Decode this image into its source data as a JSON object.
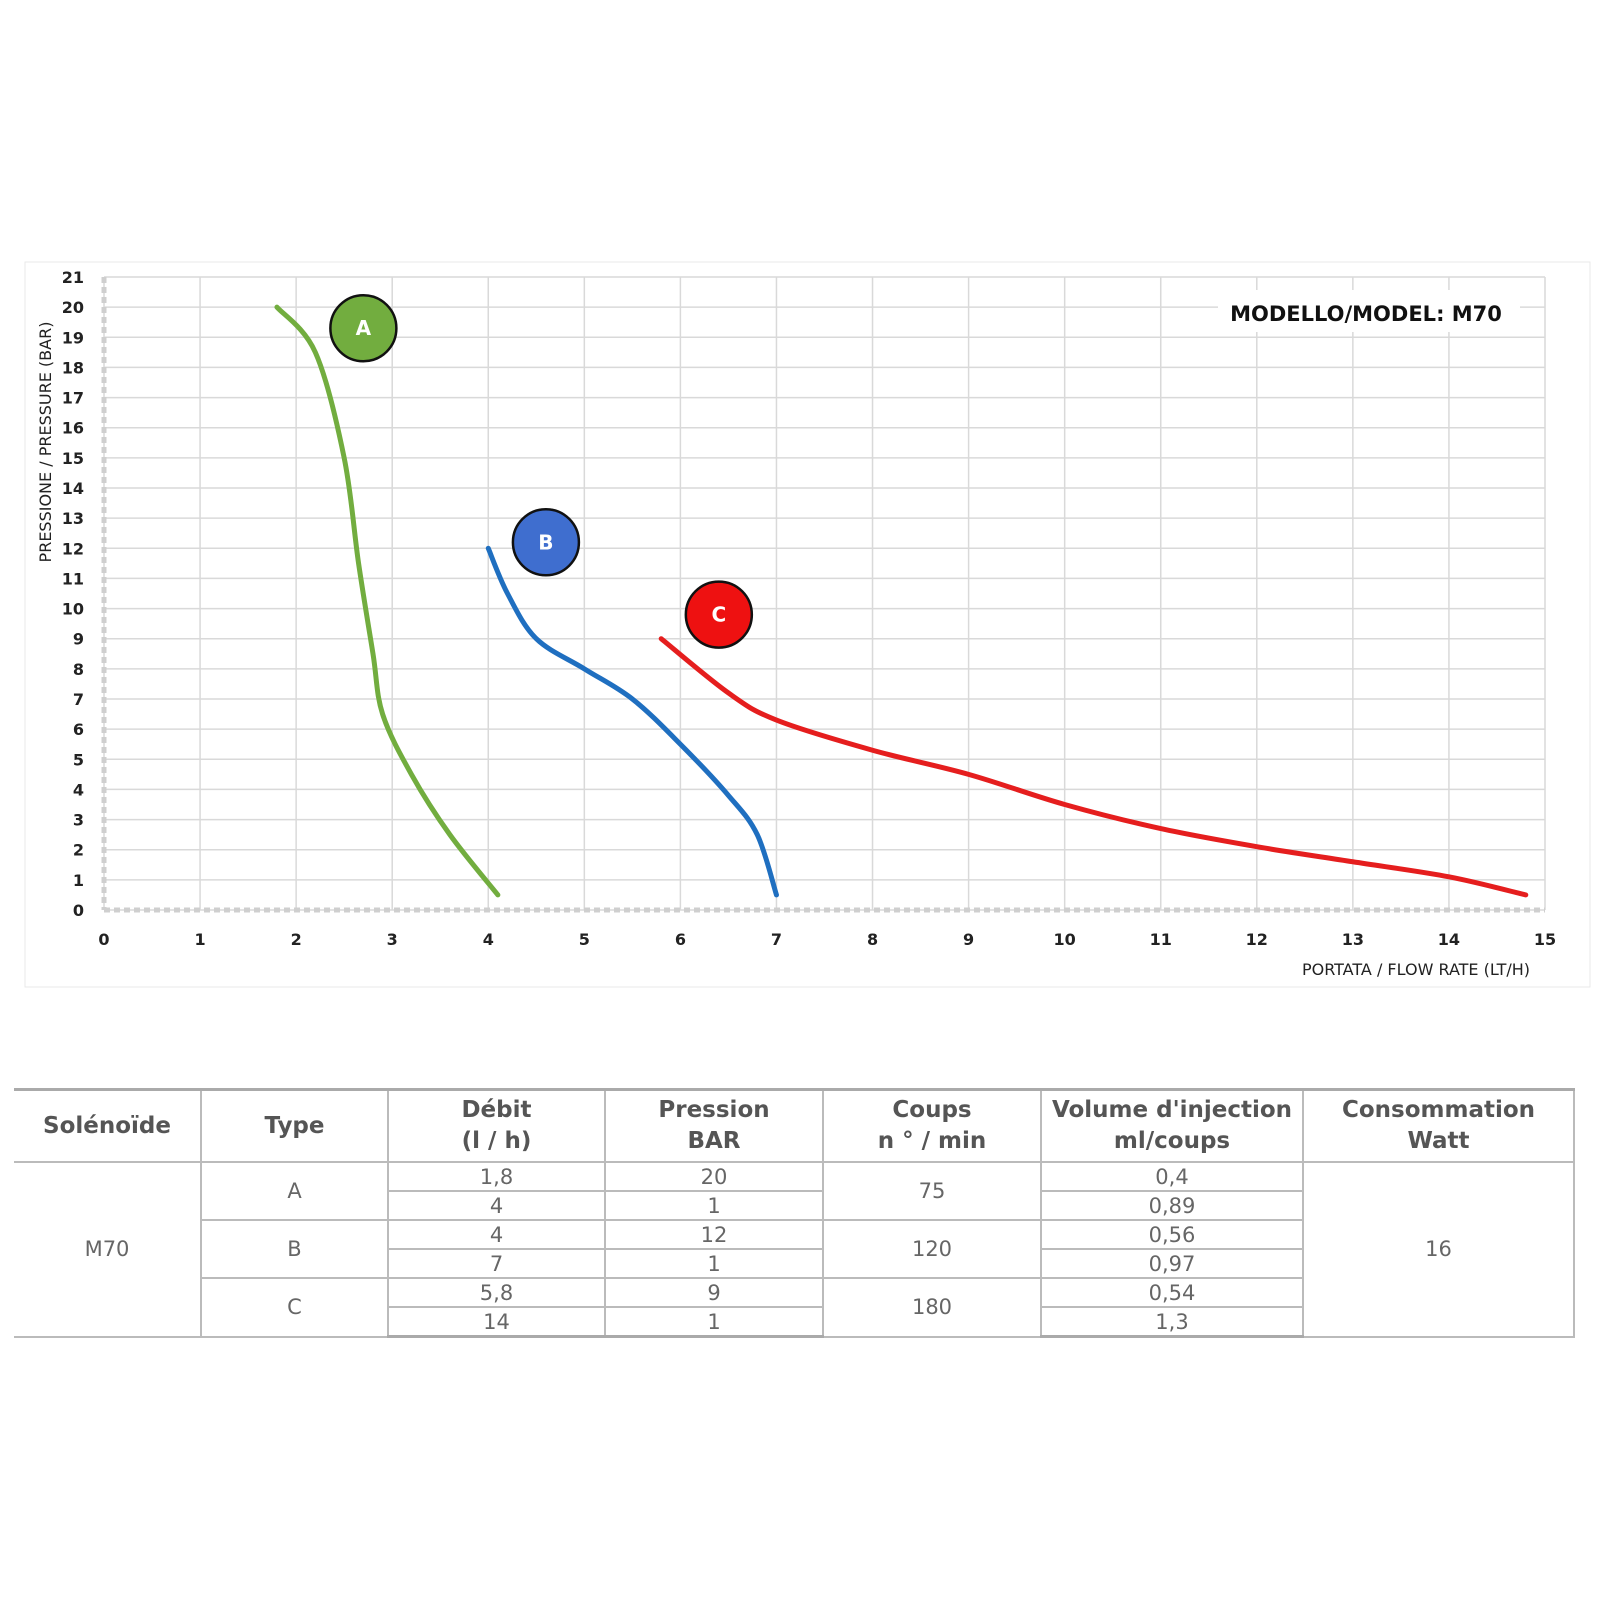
{
  "chart_data": {
    "type": "line",
    "title": "MODELLO/MODEL: M70",
    "xlabel": "PORTATA / FLOW RATE (LT/H)",
    "ylabel": "PRESSIONE / PRESSURE (BAR)",
    "xlim": [
      0,
      15
    ],
    "ylim": [
      0,
      21
    ],
    "x_ticks": [
      0,
      1,
      2,
      3,
      4,
      5,
      6,
      7,
      8,
      9,
      10,
      11,
      12,
      13,
      14,
      15
    ],
    "y_ticks": [
      0,
      1,
      2,
      3,
      4,
      5,
      6,
      7,
      8,
      9,
      10,
      11,
      12,
      13,
      14,
      15,
      16,
      17,
      18,
      19,
      20,
      21
    ],
    "grid": true,
    "series": [
      {
        "name": "A",
        "color": "#72ad3f",
        "points": [
          [
            1.8,
            20
          ],
          [
            2.2,
            18.5
          ],
          [
            2.5,
            15
          ],
          [
            2.65,
            11.5
          ],
          [
            2.8,
            8.5
          ],
          [
            2.9,
            6.5
          ],
          [
            3.2,
            4.5
          ],
          [
            3.6,
            2.5
          ],
          [
            4.1,
            0.5
          ]
        ]
      },
      {
        "name": "B",
        "color": "#1f6fc0",
        "points": [
          [
            4.0,
            12
          ],
          [
            4.2,
            10.5
          ],
          [
            4.5,
            9
          ],
          [
            5.0,
            8
          ],
          [
            5.5,
            7
          ],
          [
            6.0,
            5.5
          ],
          [
            6.5,
            3.8
          ],
          [
            6.8,
            2.5
          ],
          [
            7.0,
            0.5
          ]
        ]
      },
      {
        "name": "C",
        "color": "#e51e1e",
        "points": [
          [
            5.8,
            9
          ],
          [
            6.5,
            7.2
          ],
          [
            7.0,
            6.3
          ],
          [
            8.0,
            5.3
          ],
          [
            9.0,
            4.5
          ],
          [
            10.0,
            3.5
          ],
          [
            11.0,
            2.7
          ],
          [
            12.0,
            2.1
          ],
          [
            13.0,
            1.6
          ],
          [
            14.0,
            1.1
          ],
          [
            14.8,
            0.5
          ]
        ]
      }
    ],
    "badges": [
      {
        "label": "A",
        "color": "#72ad3f",
        "x": 2.7,
        "y": 19.3
      },
      {
        "label": "B",
        "color": "#3f6ecf",
        "x": 4.6,
        "y": 12.2
      },
      {
        "label": "C",
        "color": "#ee1111",
        "x": 6.4,
        "y": 9.8
      }
    ]
  },
  "table": {
    "headers": [
      [
        "Solénoïde"
      ],
      [
        "Type"
      ],
      [
        "Débit",
        "(l / h)"
      ],
      [
        "Pression",
        "BAR"
      ],
      [
        "Coups",
        "n ° / min"
      ],
      [
        "Volume d'injection",
        "ml/coups"
      ],
      [
        "Consommation",
        "Watt"
      ]
    ],
    "model": "M70",
    "rows": [
      {
        "type": "A",
        "debit": [
          "1,8",
          "4"
        ],
        "pression": [
          "20",
          "1"
        ],
        "coups": "75",
        "volume": [
          "0,4",
          "0,89"
        ]
      },
      {
        "type": "B",
        "debit": [
          "4",
          "7"
        ],
        "pression": [
          "12",
          "1"
        ],
        "coups": "120",
        "volume": [
          "0,56",
          "0,97"
        ]
      },
      {
        "type": "C",
        "debit": [
          "5,8",
          "14"
        ],
        "pression": [
          "9",
          "1"
        ],
        "coups": "180",
        "volume": [
          "0,54",
          "1,3"
        ]
      }
    ],
    "consommation": "16"
  }
}
